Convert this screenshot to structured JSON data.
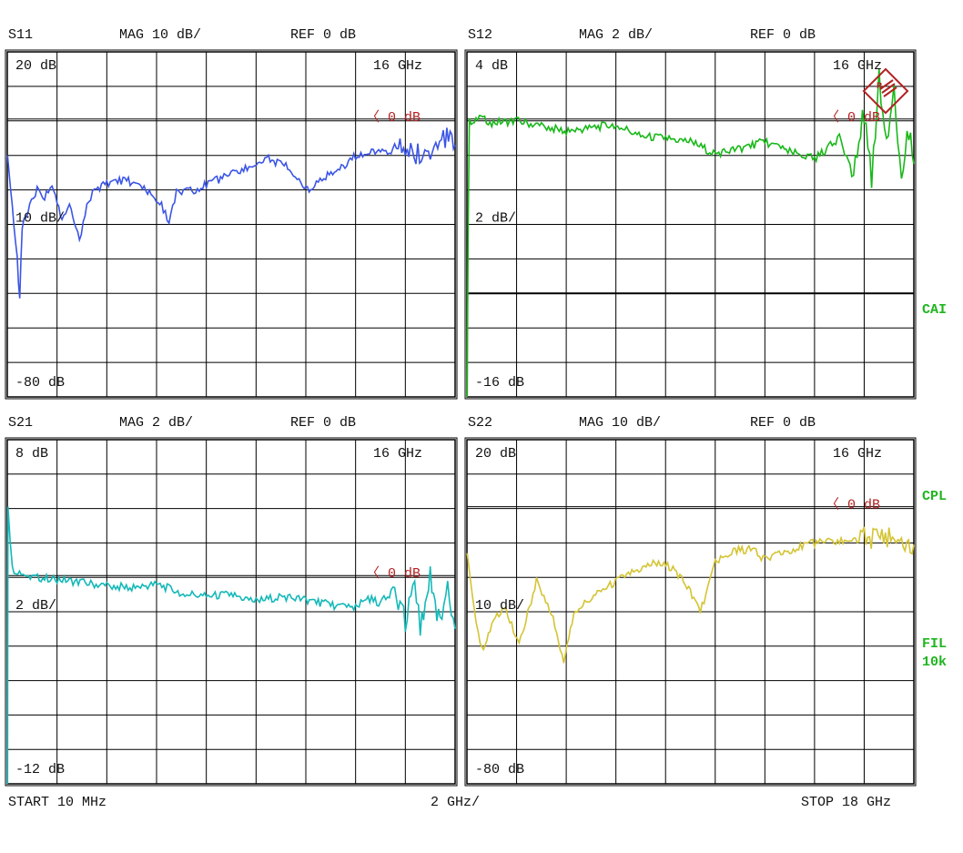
{
  "colors": {
    "background": "#ffffff",
    "grid": "#000000",
    "ref_marker": "#b22222",
    "side_labels": "#1fb51f"
  },
  "footer": {
    "start": "START 10 MHz",
    "span": "2 GHz/",
    "stop": "STOP 18 GHz"
  },
  "side_labels": {
    "cal": "CAI",
    "coupling": "CPL",
    "filter": "FIL",
    "filter_value": "10k"
  },
  "logo": {
    "name": "rohde-schwarz-logo",
    "text": "R&S"
  },
  "chart_data": [
    {
      "type": "line",
      "param": "S11",
      "format": "MAG 10 dB/",
      "ref": "REF 0 dB",
      "top_label": "20 dB",
      "scale_label": "10 dB/",
      "bottom_label": "-80 dB",
      "marker_label": "16 GHz",
      "ref_label": "〈 0 dB",
      "xlim": [
        0.01,
        18
      ],
      "ylim": [
        -80,
        20
      ],
      "ref_db": 0,
      "grid": true,
      "color": "#3b55e6",
      "x": [
        0.01,
        0.2,
        0.4,
        0.5,
        0.6,
        0.9,
        1.2,
        1.5,
        1.8,
        2.2,
        2.5,
        2.9,
        3.2,
        3.5,
        4.0,
        4.8,
        5.5,
        6.2,
        6.5,
        6.8,
        7.5,
        8.5,
        9.5,
        10.5,
        11.2,
        11.8,
        12.2,
        12.8,
        13.5,
        14.0,
        15.0,
        16.0,
        16.5,
        17.0,
        17.6,
        18
      ],
      "y": [
        -10,
        -25,
        -40,
        -52,
        -30,
        -25,
        -20,
        -22,
        -19,
        -28,
        -24,
        -35,
        -25,
        -20,
        -18,
        -17,
        -20,
        -24,
        -30,
        -21,
        -20,
        -17,
        -14,
        -11,
        -13,
        -18,
        -20,
        -16,
        -13,
        -10,
        -9,
        -8.5,
        -10,
        -8,
        -5,
        -7
      ]
    },
    {
      "type": "line",
      "param": "S12",
      "format": "MAG 2 dB/",
      "ref": "REF 0 dB",
      "top_label": "4 dB",
      "scale_label": "2 dB/",
      "bottom_label": "-16 dB",
      "marker_label": "16 GHz",
      "ref_label": "〈 0 dB",
      "xlim": [
        0.01,
        18
      ],
      "ylim": [
        -16,
        4
      ],
      "ref_db": 0,
      "limit_line_db": -10,
      "grid": true,
      "color": "#18b818",
      "x": [
        0.01,
        0.05,
        0.1,
        0.5,
        1,
        2,
        3,
        4,
        5,
        6,
        7,
        8,
        9,
        10,
        11,
        12,
        13,
        14,
        14.5,
        15,
        15.5,
        16,
        16.3,
        16.6,
        16.9,
        17.2,
        17.5,
        17.8,
        18
      ],
      "y": [
        -16,
        -6,
        0,
        0.2,
        -0.1,
        0,
        -0.3,
        -0.6,
        -0.4,
        -0.2,
        -0.9,
        -1,
        -1.2,
        -1.9,
        -1.6,
        -1.2,
        -1.8,
        -2.2,
        -1.6,
        -1.0,
        -3,
        0.5,
        -3.5,
        2.4,
        -1.5,
        2,
        -3.4,
        -0.5,
        -2.5
      ]
    },
    {
      "type": "line",
      "param": "S21",
      "format": "MAG 2 dB/",
      "ref": "REF 0 dB",
      "top_label": "8 dB",
      "scale_label": "2 dB/",
      "bottom_label": "-12 dB",
      "marker_label": "16 GHz",
      "ref_label": "〈 0 dB",
      "xlim": [
        0.01,
        18
      ],
      "ylim": [
        -12,
        8
      ],
      "ref_db": 0,
      "grid": true,
      "color": "#14b8b8",
      "x": [
        0.01,
        0.03,
        0.2,
        1,
        2,
        3,
        4,
        5,
        6,
        7,
        8,
        9,
        10,
        11,
        12,
        13,
        14,
        14.5,
        15,
        15.5,
        16,
        16.3,
        16.6,
        17,
        17.4,
        17.7,
        18
      ],
      "y": [
        -12,
        4,
        0.5,
        0,
        -0.1,
        -0.3,
        -0.5,
        -0.6,
        -0.4,
        -0.9,
        -1.1,
        -1.0,
        -1.4,
        -1.1,
        -1.3,
        -1.6,
        -1.8,
        -1.2,
        -1.5,
        -0.8,
        -2.5,
        0.2,
        -3,
        0,
        -2.8,
        -0.3,
        -3
      ]
    },
    {
      "type": "line",
      "param": "S22",
      "format": "MAG 10 dB/",
      "ref": "REF 0 dB",
      "top_label": "20 dB",
      "scale_label": "10 dB/",
      "bottom_label": "-80 dB",
      "marker_label": "16 GHz",
      "ref_label": "〈 0 dB",
      "xlim": [
        0.01,
        18
      ],
      "ylim": [
        -80,
        20
      ],
      "ref_db": 0,
      "grid": true,
      "color": "#d4c434",
      "x": [
        0.01,
        0.3,
        0.6,
        1.0,
        1.5,
        2.1,
        2.8,
        3.4,
        3.9,
        4.3,
        5.4,
        6.5,
        7.5,
        8.3,
        9.0,
        9.4,
        10.0,
        10.8,
        11.5,
        12.0,
        13.0,
        14.0,
        15.0,
        16.0,
        17.0,
        17.5,
        18
      ],
      "y": [
        -13,
        -30,
        -41,
        -34,
        -28,
        -40,
        -21,
        -30,
        -45,
        -30,
        -24,
        -19,
        -16,
        -17,
        -24,
        -30,
        -16,
        -12,
        -12,
        -15,
        -12,
        -10,
        -9.5,
        -8.5,
        -8,
        -9,
        -10.5
      ]
    }
  ]
}
